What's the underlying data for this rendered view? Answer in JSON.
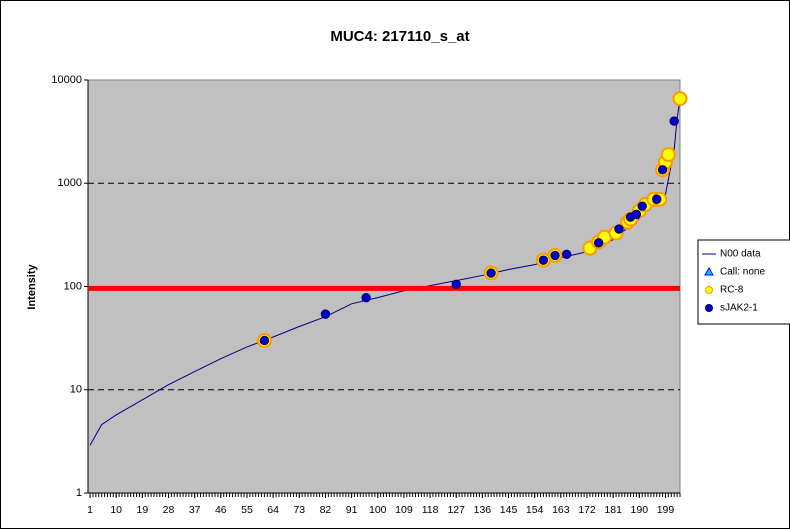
{
  "chart_data": {
    "type": "line",
    "title": "MUC4:  217110_s_at",
    "y_label": "Intensity",
    "log_y": true,
    "grid": true,
    "plot_bg": "#c0c0c0",
    "xlim": [
      0.3,
      204
    ],
    "xticks": [
      1,
      10,
      19,
      28,
      37,
      46,
      55,
      64,
      73,
      82,
      91,
      100,
      109,
      118,
      127,
      136,
      145,
      154,
      163,
      172,
      181,
      190,
      199
    ],
    "ylim": [
      1,
      10000
    ],
    "yticks": [
      1,
      10,
      100,
      1000,
      10000
    ],
    "threshold": 96,
    "threshold_color": "#ff0000",
    "legend": "right",
    "series": [
      {
        "name": "N00 data",
        "color": "#000080",
        "marker": "none",
        "x": [
          1,
          5,
          10,
          19,
          28,
          37,
          46,
          55,
          61,
          73,
          82,
          91,
          100,
          109,
          118,
          127,
          136,
          145,
          154,
          163,
          172,
          181,
          190,
          195,
          199,
          200,
          201,
          202,
          203,
          204
        ],
        "values": [
          2.9,
          4.6,
          5.7,
          8,
          11.2,
          15,
          20,
          26,
          30,
          41,
          51,
          68,
          78,
          91,
          102,
          114,
          128,
          146,
          163,
          190,
          217,
          285,
          457,
          625,
          780,
          1090,
          1530,
          2130,
          4200,
          6500
        ]
      },
      {
        "name": "Call: none",
        "color": "#00ccff",
        "marker": "triangle",
        "x": [],
        "values": []
      },
      {
        "name": "RC-8",
        "color": "#ffff00",
        "stroke": "#ff9900",
        "marker": "circle",
        "x": [
          61,
          139,
          157,
          161,
          173,
          176,
          178,
          182,
          186,
          187,
          190,
          192,
          195,
          197,
          198,
          199,
          200,
          204
        ],
        "values": [
          30,
          135,
          180,
          200,
          235,
          270,
          300,
          330,
          420,
          450,
          540,
          620,
          700,
          700,
          1350,
          1600,
          1900,
          6600
        ]
      },
      {
        "name": "sJAK2-1",
        "color": "#0000cc",
        "stroke": "#000066",
        "marker": "dot",
        "x": [
          61,
          82,
          96,
          127,
          139,
          157,
          161,
          165,
          176,
          183,
          187,
          189,
          191,
          196,
          198,
          202
        ],
        "values": [
          30,
          54,
          78,
          105,
          135,
          180,
          200,
          205,
          265,
          360,
          470,
          500,
          600,
          700,
          1350,
          4000
        ]
      }
    ]
  }
}
